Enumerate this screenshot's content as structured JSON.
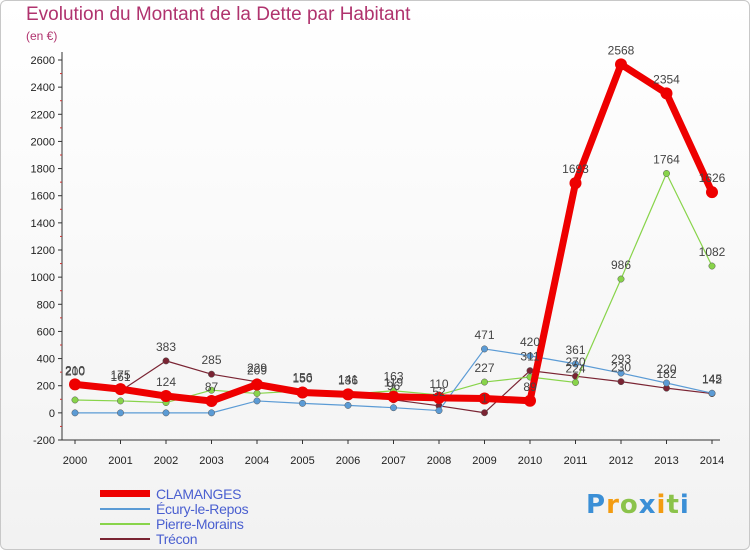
{
  "chart_data": {
    "type": "line",
    "title": "Evolution du Montant de la Dette par Habitant",
    "subtitle": "(en €)",
    "x": [
      "2000",
      "2001",
      "2002",
      "2003",
      "2004",
      "2005",
      "2006",
      "2007",
      "2008",
      "2009",
      "2010",
      "2011",
      "2012",
      "2013",
      "2014"
    ],
    "ylim": [
      -200,
      2600
    ],
    "yticks": [
      -200,
      0,
      200,
      400,
      600,
      800,
      1000,
      1200,
      1400,
      1600,
      1800,
      2000,
      2200,
      2400,
      2600
    ],
    "grid": false,
    "legend_position": "bottom-left",
    "series": [
      {
        "name": "CLAMANGES",
        "color": "#ee0000",
        "values": [
          210,
          175,
          124,
          87,
          209,
          150,
          136,
          119,
          110,
          106,
          89,
          1693,
          2568,
          2354,
          1626
        ],
        "labels": [
          "210",
          "175",
          "124",
          "87",
          "209",
          "150",
          "136",
          "119",
          "110",
          "",
          "89",
          "1693",
          "2568",
          "2354",
          "1626"
        ]
      },
      {
        "name": "Écury-le-Repos",
        "color": "#5b9bd5",
        "values": [
          0,
          0,
          0,
          0,
          88,
          70,
          55,
          38,
          17,
          471,
          420,
          361,
          293,
          220,
          145
        ],
        "labels": [
          "",
          "",
          "",
          "",
          "",
          "",
          "",
          "",
          "",
          "471",
          "420",
          "361",
          "293",
          "220",
          "145"
        ]
      },
      {
        "name": "Pierre-Morains",
        "color": "#88d44a",
        "values": [
          95,
          88,
          76,
          167,
          143,
          163,
          136,
          163,
          132,
          227,
          264,
          224,
          986,
          1764,
          1082
        ],
        "labels": [
          "",
          "",
          "",
          "",
          "",
          "",
          "",
          "163",
          "",
          "227",
          "",
          "224",
          "986",
          "1764",
          "1082"
        ]
      },
      {
        "name": "Trécon",
        "color": "#7a2433",
        "values": [
          200,
          161,
          383,
          285,
          229,
          156,
          141,
          96,
          52,
          1,
          311,
          270,
          230,
          182,
          142
        ],
        "labels": [
          "200",
          "161",
          "383",
          "285",
          "229",
          "156",
          "141",
          "96",
          "52",
          "1",
          "311",
          "270",
          "230",
          "182",
          "142"
        ]
      }
    ]
  },
  "logo": {
    "letters": [
      "P",
      "r",
      "o",
      "x",
      "i",
      "t",
      "i"
    ],
    "colors": [
      "#3b8fd6",
      "#f39c12",
      "#8bc34a",
      "#3b8fd6",
      "#f39c12",
      "#8bc34a",
      "#3b8fd6"
    ]
  }
}
